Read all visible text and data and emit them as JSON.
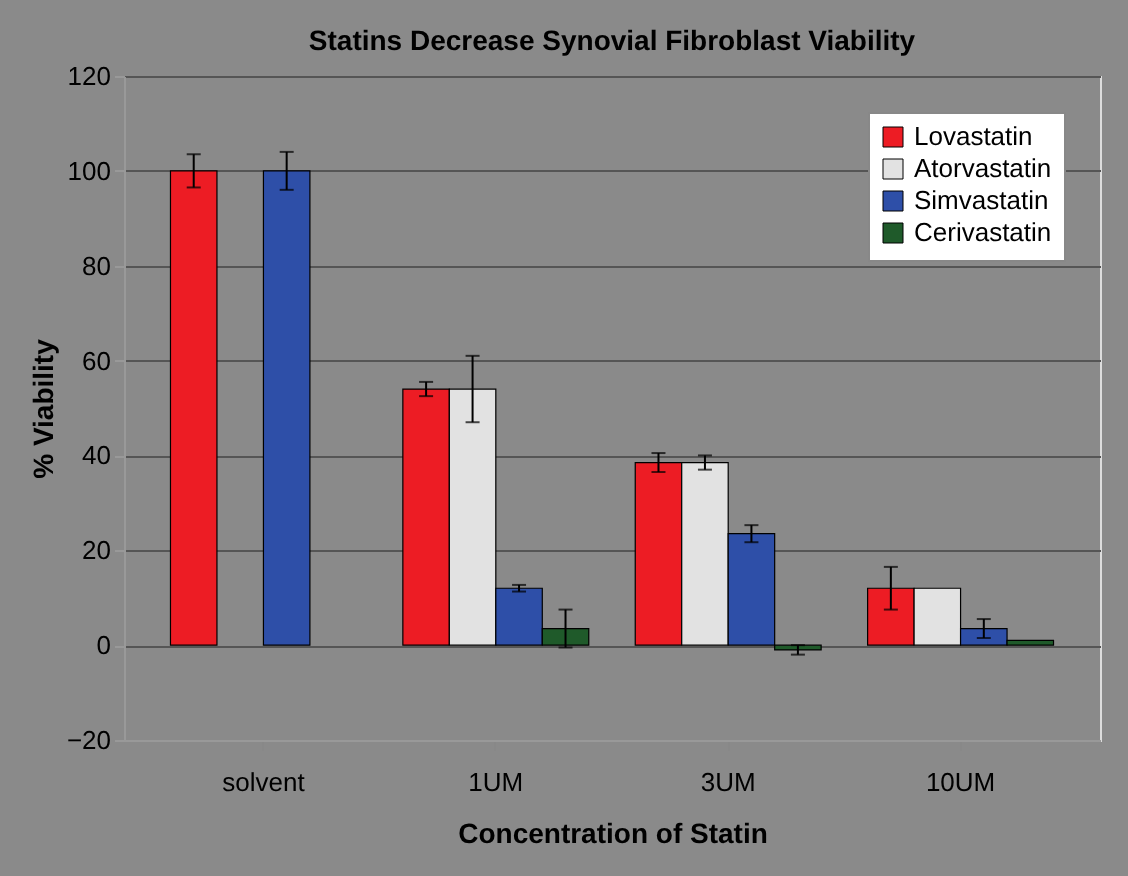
{
  "chart_data": {
    "type": "bar",
    "title": "Statins Decrease Synovial Fibroblast Viability",
    "xlabel": "Concentration of Statin",
    "ylabel": "% Viability",
    "categories": [
      "solvent",
      "1UM",
      "3UM",
      "10UM"
    ],
    "series": [
      {
        "name": "Lovastatin",
        "color": "#ed1c24",
        "values": [
          100,
          54,
          38.5,
          12
        ],
        "errors": [
          3.5,
          1.5,
          2,
          4.5
        ]
      },
      {
        "name": "Atorvastatin",
        "color": "#e2e2e2",
        "values": [
          null,
          54,
          38.5,
          12
        ],
        "errors": [
          null,
          7,
          1.5,
          null
        ]
      },
      {
        "name": "Simvastatin",
        "color": "#2e4fa8",
        "values": [
          100,
          12,
          23.5,
          3.5
        ],
        "errors": [
          4,
          0.7,
          1.8,
          2
        ]
      },
      {
        "name": "Cerivastatin",
        "color": "#1f5a2a",
        "values": [
          null,
          3.5,
          -1,
          1
        ],
        "errors": [
          null,
          4,
          1,
          null
        ]
      }
    ],
    "ylim": [
      -20,
      120
    ],
    "yticks": [
      -20,
      0,
      20,
      40,
      60,
      80,
      100,
      120
    ],
    "grid": "y",
    "legend": "top right"
  }
}
